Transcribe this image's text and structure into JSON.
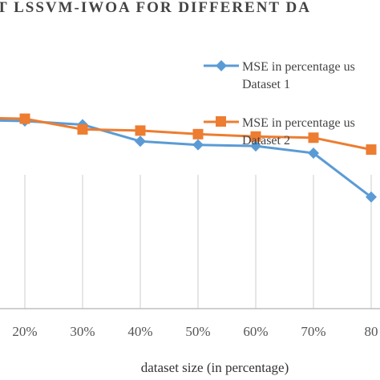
{
  "chart_data": {
    "type": "line",
    "title": "T LSSVM-IWOA FOR DIFFERENT DA",
    "xlabel": "dataset size (in percentage)",
    "ylabel": "",
    "categories": [
      "",
      "20%",
      "30%",
      "40%",
      "50%",
      "60%",
      "70%",
      "80"
    ],
    "series": [
      {
        "name_line1": "MSE in percentage us",
        "name_line2": "Dataset 1",
        "color": "#5b9bd5",
        "marker": "diamond",
        "values": [
          0.795,
          0.79,
          0.775,
          0.705,
          0.69,
          0.685,
          0.655,
          0.47
        ]
      },
      {
        "name_line1": "MSE in percentage us",
        "name_line2": "Dataset 2",
        "color": "#ed7d31",
        "marker": "square",
        "values": [
          0.805,
          0.8,
          0.755,
          0.75,
          0.735,
          0.725,
          0.72,
          0.67
        ]
      }
    ],
    "ylim": [
      0,
      1.3
    ],
    "grid": "vertical",
    "legend_position": "top-right"
  }
}
